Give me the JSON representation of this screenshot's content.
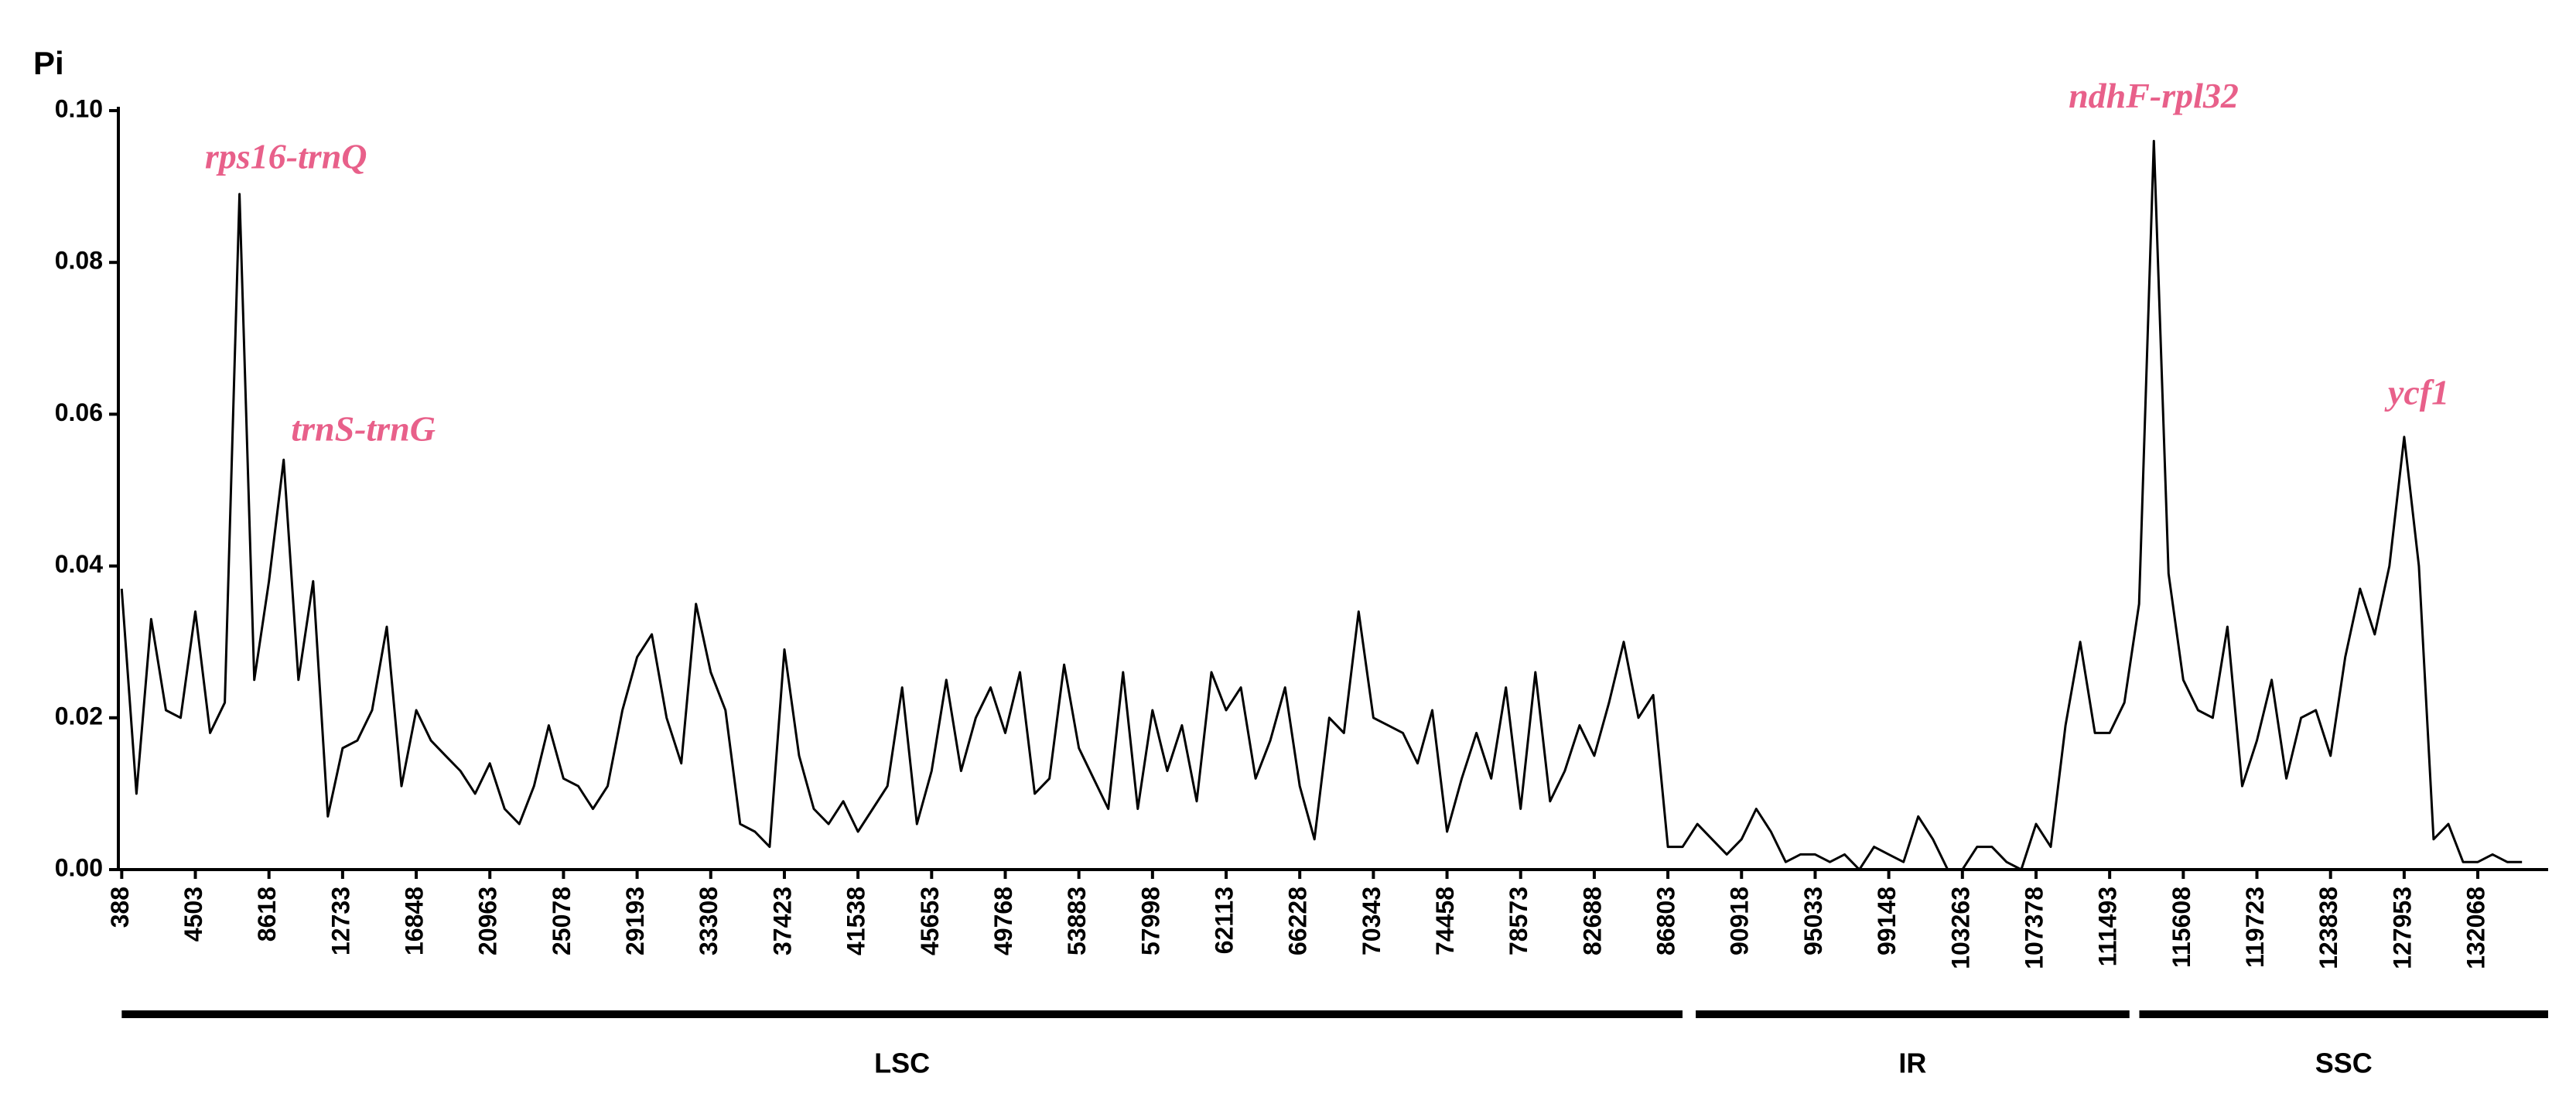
{
  "chart_data": {
    "type": "line",
    "y_label": "Pi",
    "color": "#000000",
    "x": [
      388,
      1211,
      2034,
      2857,
      3680,
      4503,
      5326,
      6149,
      6972,
      7795,
      8618,
      9441,
      10264,
      11087,
      11910,
      12733,
      13556,
      14379,
      15202,
      16025,
      16848,
      17671,
      18494,
      19317,
      20140,
      20963,
      21786,
      22609,
      23432,
      24255,
      25078,
      25901,
      26724,
      27547,
      28370,
      29193,
      30016,
      30839,
      31662,
      32485,
      33308,
      34131,
      34954,
      35777,
      36600,
      37423,
      38246,
      39069,
      39892,
      40715,
      41538,
      42361,
      43184,
      44007,
      44830,
      45653,
      46476,
      47299,
      48122,
      48945,
      49768,
      50591,
      51414,
      52237,
      53060,
      53883,
      54706,
      55529,
      56352,
      57175,
      57998,
      58821,
      59644,
      60467,
      61290,
      62113,
      62936,
      63759,
      64582,
      65405,
      66228,
      67051,
      67874,
      68697,
      69520,
      70343,
      71166,
      71989,
      72812,
      73635,
      74458,
      75281,
      76104,
      76927,
      77750,
      78573,
      79396,
      80219,
      81042,
      81865,
      82688,
      83511,
      84334,
      85157,
      85980,
      86803,
      87626,
      88449,
      89272,
      90095,
      90918,
      91741,
      92564,
      93387,
      94210,
      95033,
      95856,
      96679,
      97502,
      98325,
      99148,
      99971,
      100794,
      101617,
      102440,
      103263,
      104086,
      104909,
      105732,
      106555,
      107378,
      108201,
      109024,
      109847,
      110670,
      111493,
      112316,
      113139,
      113962,
      114785,
      115608,
      116431,
      117254,
      118077,
      118900,
      119723,
      120546,
      121369,
      122192,
      123015,
      123838,
      124661,
      125484,
      126307,
      127130,
      127953,
      128776,
      129599,
      130422,
      131245,
      132068,
      132891,
      133714,
      134537
    ],
    "values": [
      0.037,
      0.01,
      0.033,
      0.021,
      0.02,
      0.034,
      0.018,
      0.022,
      0.089,
      0.025,
      0.038,
      0.054,
      0.025,
      0.038,
      0.007,
      0.016,
      0.017,
      0.021,
      0.032,
      0.011,
      0.021,
      0.017,
      0.015,
      0.013,
      0.01,
      0.014,
      0.008,
      0.006,
      0.011,
      0.019,
      0.012,
      0.011,
      0.008,
      0.011,
      0.021,
      0.028,
      0.031,
      0.02,
      0.014,
      0.035,
      0.026,
      0.021,
      0.006,
      0.005,
      0.003,
      0.029,
      0.015,
      0.008,
      0.006,
      0.009,
      0.005,
      0.008,
      0.011,
      0.024,
      0.006,
      0.013,
      0.025,
      0.013,
      0.02,
      0.024,
      0.018,
      0.026,
      0.01,
      0.012,
      0.027,
      0.016,
      0.012,
      0.008,
      0.026,
      0.008,
      0.021,
      0.013,
      0.019,
      0.009,
      0.026,
      0.021,
      0.024,
      0.012,
      0.017,
      0.024,
      0.011,
      0.004,
      0.02,
      0.018,
      0.034,
      0.02,
      0.019,
      0.018,
      0.014,
      0.021,
      0.005,
      0.012,
      0.018,
      0.012,
      0.024,
      0.008,
      0.026,
      0.009,
      0.013,
      0.019,
      0.015,
      0.022,
      0.03,
      0.02,
      0.023,
      0.003,
      0.003,
      0.006,
      0.004,
      0.002,
      0.004,
      0.008,
      0.005,
      0.001,
      0.002,
      0.002,
      0.001,
      0.002,
      0,
      0.003,
      0.002,
      0.001,
      0.007,
      0.004,
      0,
      0,
      0.003,
      0.003,
      0.001,
      0,
      0.006,
      0.003,
      0.019,
      0.03,
      0.018,
      0.018,
      0.022,
      0.035,
      0.096,
      0.039,
      0.025,
      0.021,
      0.02,
      0.032,
      0.011,
      0.017,
      0.025,
      0.012,
      0.02,
      0.021,
      0.015,
      0.028,
      0.037,
      0.031,
      0.04,
      0.057,
      0.04,
      0.004,
      0.006,
      0.001,
      0.001,
      0.002,
      0.001,
      0.001
    ],
    "xlim": [
      200,
      136000
    ],
    "xticks": [
      388,
      4503,
      8618,
      12733,
      16848,
      20963,
      25078,
      29193,
      33308,
      37423,
      41538,
      45653,
      49768,
      53883,
      57998,
      62113,
      66228,
      70343,
      74458,
      78573,
      82688,
      86803,
      90918,
      95033,
      99148,
      103263,
      107378,
      111493,
      115608,
      119723,
      123838,
      127953,
      132068
    ],
    "ylim": [
      0,
      0.1
    ],
    "yticks": [
      {
        "value": 0,
        "label": "0.00"
      },
      {
        "value": 0.02,
        "label": "0.02"
      },
      {
        "value": 0.04,
        "label": "0.04"
      },
      {
        "value": 0.06,
        "label": "0.06"
      },
      {
        "value": 0.08,
        "label": "0.08"
      },
      {
        "value": 0.1,
        "label": "0.10"
      }
    ],
    "annotations": [
      {
        "text": "rps16-trnQ",
        "x": 9570,
        "y": 0.0935
      },
      {
        "text": "trnS-trnG",
        "x": 13890,
        "y": 0.0576
      },
      {
        "text": "ndhF-rpl32",
        "x": 113950,
        "y": 0.1015
      },
      {
        "text": "ycf1",
        "x": 128760,
        "y": 0.0624
      }
    ],
    "regions": [
      {
        "name": "LSC",
        "start": 388,
        "end": 87620
      },
      {
        "name": "IR",
        "start": 88360,
        "end": 112600
      },
      {
        "name": "SSC",
        "start": 113150,
        "end": 136000
      }
    ]
  }
}
